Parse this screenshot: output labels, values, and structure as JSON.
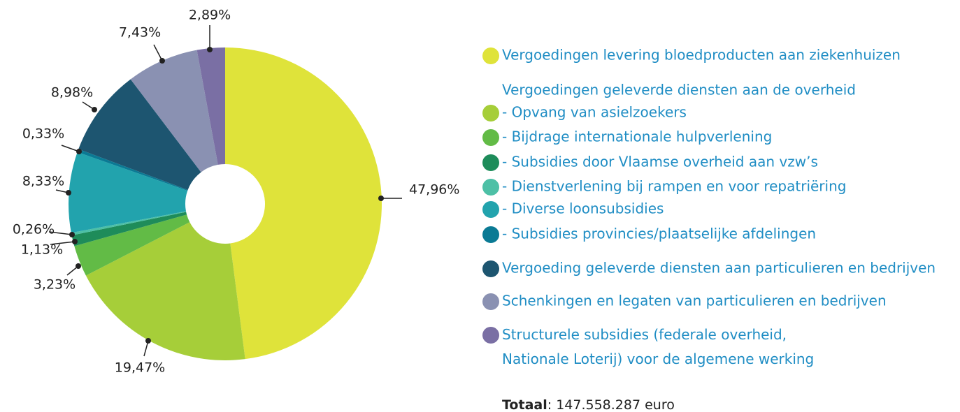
{
  "chart_data": {
    "type": "donut",
    "categories": [
      "Vergoedingen levering bloedproducten aan ziekenhuizen",
      "- Opvang van asielzoekers",
      "- Bijdrage internationale hulpverlening",
      "- Subsidies door Vlaamse overheid aan vzw’s",
      "- Dienstverlening bij rampen en voor repatriëring",
      "- Diverse loonsubsidies",
      "- Subsidies provincies/plaatselijke afdelingen",
      "Vergoeding geleverde diensten aan particulieren en bedrijven",
      "Schenkingen en legaten van particulieren en bedrijven",
      "Structurele subsidies (federale overheid,\nNationale Loterij) voor de algemene werking"
    ],
    "legend_group": "Vergoedingen geleverde diensten aan de overheid",
    "values": [
      47.96,
      19.47,
      3.23,
      1.13,
      0.26,
      8.33,
      0.33,
      8.98,
      7.43,
      2.89
    ],
    "value_labels": [
      "47,96%",
      "19,47%",
      "3,23%",
      "1,13%",
      "0,26%",
      "8,33%",
      "0,33%",
      "8,98%",
      "7,43%",
      "2,89%"
    ],
    "colors": [
      "#dfe33a",
      "#a6ce39",
      "#62bb46",
      "#1e8c5a",
      "#4dc0a6",
      "#22a3ad",
      "#0a7a94",
      "#1d5570",
      "#8a91b2",
      "#7a6fa4"
    ],
    "total": {
      "label": "Totaal",
      "value": "147.558.287 euro"
    }
  }
}
